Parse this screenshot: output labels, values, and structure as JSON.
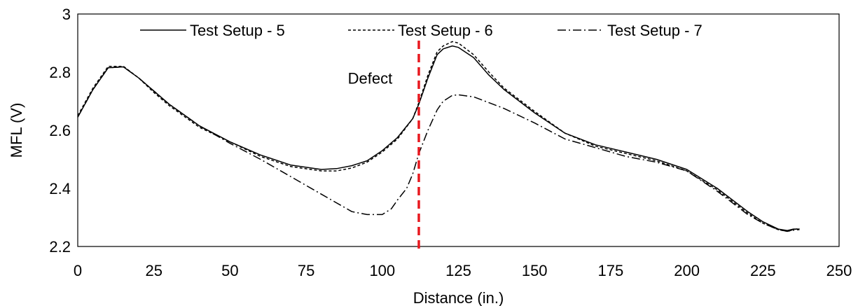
{
  "chart_data": {
    "type": "line",
    "title": "",
    "xlabel": "Distance (in.)",
    "ylabel": "MFL (V)",
    "xlim": [
      0,
      250
    ],
    "ylim": [
      2.2,
      3.0
    ],
    "xticks": [
      0,
      25,
      50,
      75,
      100,
      125,
      150,
      175,
      200,
      225,
      250
    ],
    "yticks": [
      2.2,
      2.4,
      2.6,
      2.8,
      3.0
    ],
    "ytick_labels": [
      "2.2",
      "2.4",
      "2.6",
      "2.8",
      "3"
    ],
    "grid": false,
    "legend_position": "top",
    "series": [
      {
        "name": "Test Setup - 5",
        "line_style": "solid",
        "color": "#000000",
        "x": [
          0,
          5,
          10,
          15,
          20,
          25,
          30,
          40,
          50,
          60,
          70,
          80,
          85,
          90,
          95,
          100,
          105,
          110,
          112,
          115,
          118,
          120,
          123,
          125,
          130,
          135,
          140,
          150,
          160,
          170,
          180,
          190,
          200,
          210,
          220,
          225,
          230,
          233,
          235,
          237
        ],
        "y": [
          2.645,
          2.74,
          2.815,
          2.818,
          2.78,
          2.735,
          2.69,
          2.615,
          2.56,
          2.515,
          2.48,
          2.465,
          2.468,
          2.478,
          2.495,
          2.53,
          2.575,
          2.64,
          2.69,
          2.78,
          2.86,
          2.88,
          2.89,
          2.885,
          2.85,
          2.79,
          2.74,
          2.66,
          2.59,
          2.55,
          2.525,
          2.5,
          2.465,
          2.4,
          2.32,
          2.285,
          2.26,
          2.255,
          2.26,
          2.26
        ]
      },
      {
        "name": "Test Setup - 6",
        "line_style": "dashed",
        "color": "#000000",
        "x": [
          0,
          5,
          10,
          15,
          20,
          25,
          30,
          40,
          50,
          60,
          70,
          80,
          85,
          90,
          95,
          100,
          105,
          110,
          112,
          115,
          118,
          120,
          123,
          125,
          130,
          135,
          140,
          150,
          160,
          170,
          180,
          190,
          200,
          210,
          220,
          225,
          230,
          233,
          235,
          237
        ],
        "y": [
          2.65,
          2.745,
          2.82,
          2.82,
          2.78,
          2.73,
          2.685,
          2.61,
          2.56,
          2.51,
          2.475,
          2.46,
          2.46,
          2.47,
          2.49,
          2.525,
          2.57,
          2.64,
          2.695,
          2.79,
          2.87,
          2.89,
          2.905,
          2.9,
          2.86,
          2.8,
          2.745,
          2.665,
          2.59,
          2.545,
          2.52,
          2.495,
          2.46,
          2.395,
          2.315,
          2.28,
          2.258,
          2.252,
          2.258,
          2.262
        ]
      },
      {
        "name": "Test Setup - 7",
        "line_style": "dashdot",
        "color": "#000000",
        "x": [
          0,
          5,
          10,
          15,
          20,
          25,
          30,
          40,
          50,
          60,
          70,
          80,
          90,
          95,
          100,
          103,
          105,
          108,
          110,
          112,
          115,
          118,
          120,
          123,
          125,
          130,
          135,
          140,
          150,
          160,
          170,
          180,
          190,
          200,
          210,
          220,
          225,
          230,
          233,
          235,
          237
        ],
        "y": [
          2.645,
          2.74,
          2.815,
          2.818,
          2.78,
          2.735,
          2.69,
          2.615,
          2.555,
          2.5,
          2.44,
          2.38,
          2.32,
          2.31,
          2.31,
          2.33,
          2.36,
          2.4,
          2.45,
          2.52,
          2.6,
          2.67,
          2.7,
          2.72,
          2.722,
          2.715,
          2.695,
          2.675,
          2.625,
          2.57,
          2.54,
          2.51,
          2.49,
          2.46,
          2.39,
          2.31,
          2.28,
          2.258,
          2.252,
          2.256,
          2.258
        ]
      }
    ],
    "annotations": [
      {
        "type": "vline",
        "x": 112,
        "color": "#e8191f",
        "line_style": "dashed"
      },
      {
        "type": "text",
        "text": "Defect",
        "x": 96,
        "y": 2.78
      }
    ]
  }
}
